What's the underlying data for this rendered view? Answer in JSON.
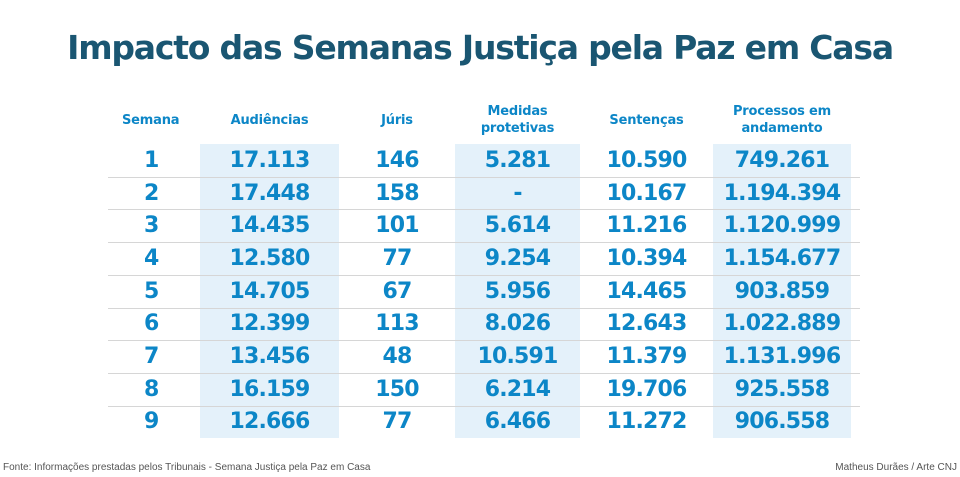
{
  "title": "Impacto das Semanas Justiça pela Paz em Casa",
  "chart_data": {
    "type": "table",
    "title": "Impacto das Semanas Justiça pela Paz em Casa",
    "columns": [
      "Semana",
      "Audiências",
      "Júris",
      "Medidas protetivas",
      "Sentenças",
      "Processos em andamento"
    ],
    "rows": [
      [
        "1",
        "17.113",
        "146",
        "5.281",
        "10.590",
        "749.261"
      ],
      [
        "2",
        "17.448",
        "158",
        "-",
        "10.167",
        "1.194.394"
      ],
      [
        "3",
        "14.435",
        "101",
        "5.614",
        "11.216",
        "1.120.999"
      ],
      [
        "4",
        "12.580",
        "77",
        "9.254",
        "10.394",
        "1.154.677"
      ],
      [
        "5",
        "14.705",
        "67",
        "5.956",
        "14.465",
        "903.859"
      ],
      [
        "6",
        "12.399",
        "113",
        "8.026",
        "12.643",
        "1.022.889"
      ],
      [
        "7",
        "13.456",
        "48",
        "10.591",
        "11.379",
        "1.131.996"
      ],
      [
        "8",
        "16.159",
        "150",
        "6.214",
        "19.706",
        "925.558"
      ],
      [
        "9",
        "12.666",
        "77",
        "6.466",
        "11.272",
        "906.558"
      ]
    ]
  },
  "footer": {
    "source": "Fonte: Informações prestadas pelos Tribunais - Semana Justiça pela Paz em Casa",
    "credit": "Matheus Durães / Arte CNJ"
  },
  "colors": {
    "title": "#1a5672",
    "accent": "#0c86c7",
    "band": "#e4f1fa",
    "rule": "#d6d6d6"
  }
}
